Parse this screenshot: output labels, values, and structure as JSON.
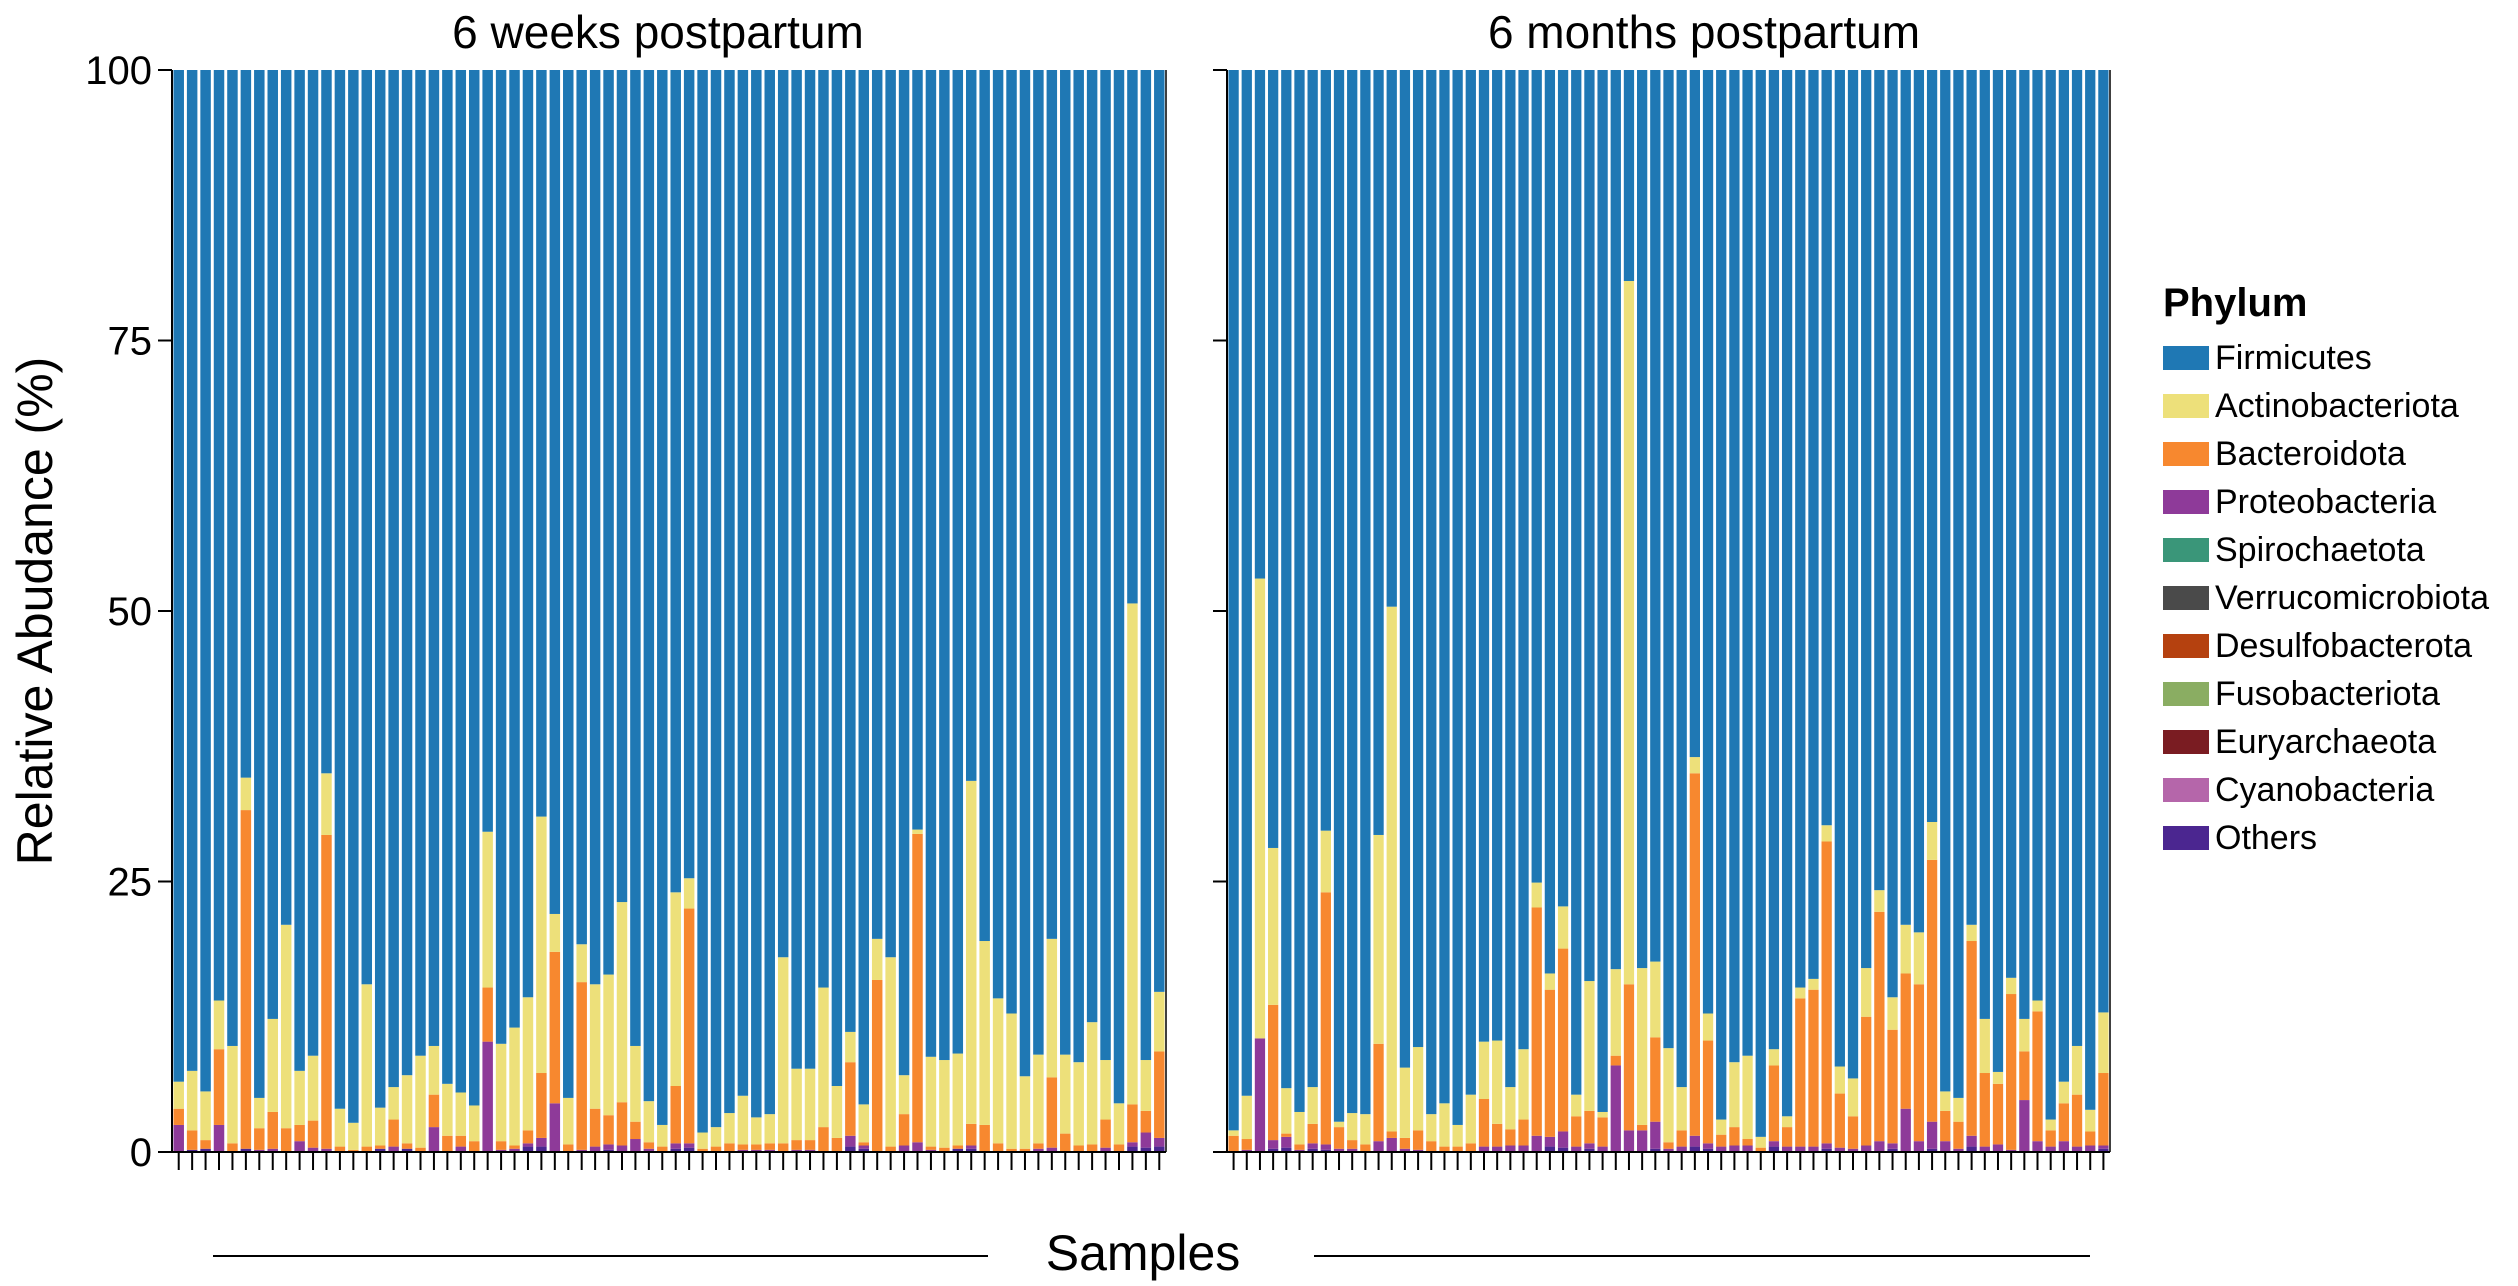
{
  "chart_data": {
    "type": "bar",
    "stacked": true,
    "ylabel": "Relative Abudance (%)",
    "xlabel": "Samples",
    "ylim": [
      0,
      100
    ],
    "yticks": [
      "0",
      "25",
      "50",
      "75",
      "100"
    ],
    "ytick_values": [
      0,
      25,
      50,
      75,
      100
    ],
    "legend": {
      "title": "Phylum",
      "entries": [
        {
          "name": "Firmicutes",
          "color": "#1f78b4"
        },
        {
          "name": "Actinobacteriota",
          "color": "#ede07a"
        },
        {
          "name": "Bacteroidota",
          "color": "#f7882f"
        },
        {
          "name": "Proteobacteria",
          "color": "#8e3a99"
        },
        {
          "name": "Spirochaetota",
          "color": "#3a9679"
        },
        {
          "name": "Verrucomicrobiota",
          "color": "#4a4a4a"
        },
        {
          "name": "Desulfobacterota",
          "color": "#b5410f"
        },
        {
          "name": "Fusobacteriota",
          "color": "#8aad62"
        },
        {
          "name": "Euryarchaeota",
          "color": "#7a1c22"
        },
        {
          "name": "Cyanobacteria",
          "color": "#b566aa"
        },
        {
          "name": "Others",
          "color": "#4b2690"
        }
      ]
    },
    "panels": [
      {
        "title": "6 weeks postpartum",
        "note": "Each sample: [Actinobacteriota, Bacteroidota, Proteobacteria, Others] in %; Firmicutes fills the remainder to 100",
        "samples": [
          [
            2.5,
            1.5,
            2.5,
            0
          ],
          [
            5.5,
            1.8,
            0,
            0.2
          ],
          [
            4.5,
            0.8,
            0,
            0.3
          ],
          [
            4.5,
            7.0,
            2.5,
            0
          ],
          [
            9.0,
            0.8,
            0,
            0
          ],
          [
            3.0,
            31.3,
            0,
            0.3
          ],
          [
            2.8,
            2.0,
            0.2,
            0
          ],
          [
            8.6,
            3.4,
            0.3,
            0
          ],
          [
            18.8,
            2.2,
            0,
            0
          ],
          [
            5.0,
            1.5,
            1.0,
            0
          ],
          [
            6.0,
            2.5,
            0.4,
            0
          ],
          [
            5.7,
            29.0,
            0.3,
            0
          ],
          [
            3.5,
            0.5,
            0,
            0
          ],
          [
            2.5,
            0.2,
            0,
            0
          ],
          [
            15.0,
            0.5,
            0,
            0
          ],
          [
            3.5,
            0.3,
            0,
            0.3
          ],
          [
            3.0,
            2.5,
            0.5,
            0
          ],
          [
            6.3,
            0.5,
            0,
            0.3
          ],
          [
            8.5,
            0.4,
            0,
            0
          ],
          [
            4.5,
            3.0,
            2.3,
            0
          ],
          [
            4.8,
            1.5,
            0,
            0
          ],
          [
            4.0,
            1.0,
            0.5,
            0
          ],
          [
            3.3,
            1.0,
            0,
            0
          ],
          [
            14.4,
            5.0,
            10.2,
            0
          ],
          [
            9.0,
            0.8,
            0.2,
            0
          ],
          [
            10.9,
            0.3,
            0.3,
            0
          ],
          [
            12.3,
            1.2,
            0.3,
            0.5
          ],
          [
            23.7,
            6.0,
            0.8,
            0.5
          ],
          [
            3.5,
            14.0,
            4.5,
            0
          ],
          [
            4.3,
            0.7,
            0,
            0
          ],
          [
            3.5,
            15.5,
            0.2,
            0
          ],
          [
            11.5,
            3.5,
            0.5,
            0
          ],
          [
            13.0,
            2.7,
            0.5,
            0.2
          ],
          [
            18.5,
            4.0,
            0.6,
            0
          ],
          [
            7.0,
            1.6,
            1.2,
            0
          ],
          [
            3.8,
            0.6,
            0.3,
            0
          ],
          [
            2.0,
            0.5,
            0,
            0
          ],
          [
            17.9,
            5.3,
            0.5,
            0.3
          ],
          [
            2.8,
            21.7,
            0.4,
            0.4
          ],
          [
            1.5,
            0.3,
            0,
            0
          ],
          [
            1.8,
            0.5,
            0,
            0
          ],
          [
            2.8,
            0.8,
            0,
            0
          ],
          [
            4.5,
            0.5,
            0.2,
            0
          ],
          [
            2.5,
            0.5,
            0.2,
            0
          ],
          [
            2.7,
            0.6,
            0.2,
            0
          ],
          [
            17.2,
            0.8,
            0,
            0
          ],
          [
            6.6,
            0.9,
            0.2,
            0
          ],
          [
            6.6,
            0.9,
            0.2,
            0
          ],
          [
            12.9,
            2.3,
            0,
            0
          ],
          [
            4.8,
            1.3,
            0,
            0
          ],
          [
            2.8,
            6.8,
            1.0,
            0.5
          ],
          [
            3.5,
            0.3,
            0.3,
            0.3
          ],
          [
            3.8,
            15.9,
            0,
            0
          ],
          [
            17.5,
            0.5,
            0,
            0
          ],
          [
            3.6,
            2.9,
            0.6,
            0
          ],
          [
            0.4,
            28.5,
            0.9,
            0
          ],
          [
            8.3,
            0.3,
            0.2,
            0
          ],
          [
            8.1,
            0.4,
            0,
            0
          ],
          [
            8.5,
            0.3,
            0,
            0.3
          ],
          [
            31.7,
            2.0,
            0.3,
            0.3
          ],
          [
            17.0,
            2.5,
            0,
            0
          ],
          [
            13.4,
            0.8,
            0,
            0
          ],
          [
            12.5,
            0.3,
            0,
            0
          ],
          [
            6.7,
            0.3,
            0,
            0
          ],
          [
            8.2,
            0.5,
            0.3,
            0
          ],
          [
            12.8,
            6.5,
            0.4,
            0
          ],
          [
            7.3,
            1.7,
            0,
            0
          ],
          [
            7.7,
            0.6,
            0,
            0
          ],
          [
            11.3,
            0.7,
            0,
            0
          ],
          [
            5.5,
            2.6,
            0.4,
            0
          ],
          [
            3.8,
            0.7,
            0,
            0
          ],
          [
            46.3,
            3.5,
            0.4,
            0.5
          ],
          [
            4.7,
            2.0,
            1.4,
            0.4
          ],
          [
            5.5,
            8.0,
            0.8,
            0.5
          ]
        ]
      },
      {
        "title": "6 months postpartum",
        "note": "Each sample: [Actinobacteriota, Bacteroidota, Proteobacteria, Others] in %; Firmicutes fills the remainder to 100",
        "samples": [
          [
            0.5,
            1.5,
            0,
            0
          ],
          [
            4.0,
            1.0,
            0.2,
            0
          ],
          [
            42.5,
            0,
            10.5,
            0
          ],
          [
            14.5,
            12.5,
            0.8,
            0.3
          ],
          [
            4.2,
            0.3,
            1.0,
            0.4
          ],
          [
            3.0,
            0.5,
            0.2,
            0
          ],
          [
            3.4,
            1.8,
            0.5,
            0.3
          ],
          [
            5.7,
            23.3,
            0.5,
            0.2
          ],
          [
            0.5,
            2.0,
            0.3,
            0
          ],
          [
            2.5,
            0.8,
            0.3,
            0
          ],
          [
            2.8,
            0.7,
            0,
            0
          ],
          [
            19.3,
            9.0,
            1.0,
            0
          ],
          [
            48.5,
            0.6,
            1.3,
            0
          ],
          [
            6.5,
            1.0,
            0.3,
            0
          ],
          [
            7.7,
            1.8,
            0.2,
            0
          ],
          [
            2.5,
            1.0,
            0,
            0
          ],
          [
            4.0,
            0.5,
            0,
            0
          ],
          [
            2.0,
            0.5,
            0,
            0
          ],
          [
            4.5,
            0.8,
            0,
            0
          ],
          [
            5.3,
            4.4,
            0.5,
            0
          ],
          [
            7.7,
            2.1,
            0.5,
            0
          ],
          [
            3.9,
            1.5,
            0.6,
            0
          ],
          [
            6.5,
            2.4,
            0.6,
            0
          ],
          [
            2.3,
            21.1,
            1.5,
            0
          ],
          [
            1.5,
            13.6,
            0.9,
            0.5
          ],
          [
            3.9,
            16.9,
            1.5,
            0.4
          ],
          [
            2.0,
            2.8,
            0.5,
            0
          ],
          [
            12.0,
            3.0,
            0.5,
            0.3
          ],
          [
            0.5,
            2.7,
            0.5,
            0
          ],
          [
            8.0,
            0.9,
            8.0,
            0
          ],
          [
            65.0,
            13.5,
            2.0,
            0
          ],
          [
            14.5,
            0.5,
            2.0,
            0
          ],
          [
            7.0,
            7.8,
            2.5,
            0.3
          ],
          [
            8.7,
            0.6,
            0.3,
            0
          ],
          [
            4.0,
            1.5,
            0.5,
            0
          ],
          [
            1.5,
            33.5,
            1.0,
            0.5
          ],
          [
            2.5,
            9.5,
            0.5,
            0.3
          ],
          [
            1.4,
            1.1,
            0.5,
            0
          ],
          [
            6.0,
            1.7,
            0.6,
            0
          ],
          [
            7.7,
            0.6,
            0.6,
            0
          ],
          [
            1.0,
            0.4,
            0,
            0
          ],
          [
            1.5,
            7.0,
            0.5,
            0.5
          ],
          [
            1.0,
            1.8,
            0.5,
            0
          ],
          [
            1.0,
            13.7,
            0.5,
            0
          ],
          [
            1.0,
            14.5,
            0.5,
            0
          ],
          [
            1.5,
            27.9,
            0.5,
            0.3
          ],
          [
            2.5,
            5.0,
            0.4,
            0
          ],
          [
            3.5,
            3.0,
            0.3,
            0
          ],
          [
            4.5,
            11.9,
            0.6,
            0
          ],
          [
            2.0,
            21.2,
            1.0,
            0
          ],
          [
            3.0,
            10.5,
            0.5,
            0.3
          ],
          [
            4.5,
            12.5,
            4.0,
            0
          ],
          [
            4.8,
            14.5,
            1.0,
            0
          ],
          [
            3.5,
            24.2,
            2.5,
            0.3
          ],
          [
            1.8,
            2.8,
            1.0,
            0
          ],
          [
            2.2,
            2.5,
            0.3,
            0
          ],
          [
            1.5,
            18.0,
            1.0,
            0.5
          ],
          [
            5.0,
            6.8,
            0.5,
            0
          ],
          [
            1.1,
            5.6,
            0.7,
            0
          ],
          [
            1.5,
            14.4,
            0.2,
            0
          ],
          [
            3.0,
            4.5,
            4.8,
            0
          ],
          [
            1.0,
            12.0,
            1.0,
            0
          ],
          [
            1.0,
            1.5,
            0.5,
            0
          ],
          [
            2.0,
            3.5,
            1.0,
            0
          ],
          [
            4.5,
            4.8,
            0.5,
            0
          ],
          [
            2.0,
            1.3,
            0.6,
            0
          ],
          [
            5.6,
            6.7,
            0.3,
            0.3
          ]
        ]
      }
    ]
  }
}
